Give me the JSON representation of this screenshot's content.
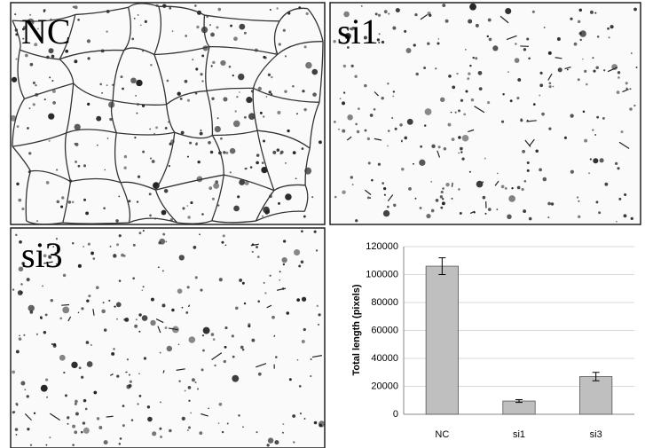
{
  "panels": [
    {
      "label": "NC"
    },
    {
      "label": "si1"
    },
    {
      "label": "si3"
    }
  ],
  "chart_data": {
    "type": "bar",
    "y_label": "Total length (pixels)",
    "categories": [
      "NC",
      "si1",
      "si3"
    ],
    "values": [
      106000,
      9500,
      27000
    ],
    "errors": [
      6000,
      1000,
      3000
    ],
    "color": "#bfbfbf",
    "ylim": [
      0,
      120000
    ],
    "yticks": [
      0,
      20000,
      40000,
      60000,
      80000,
      100000,
      120000
    ],
    "grid": true
  }
}
